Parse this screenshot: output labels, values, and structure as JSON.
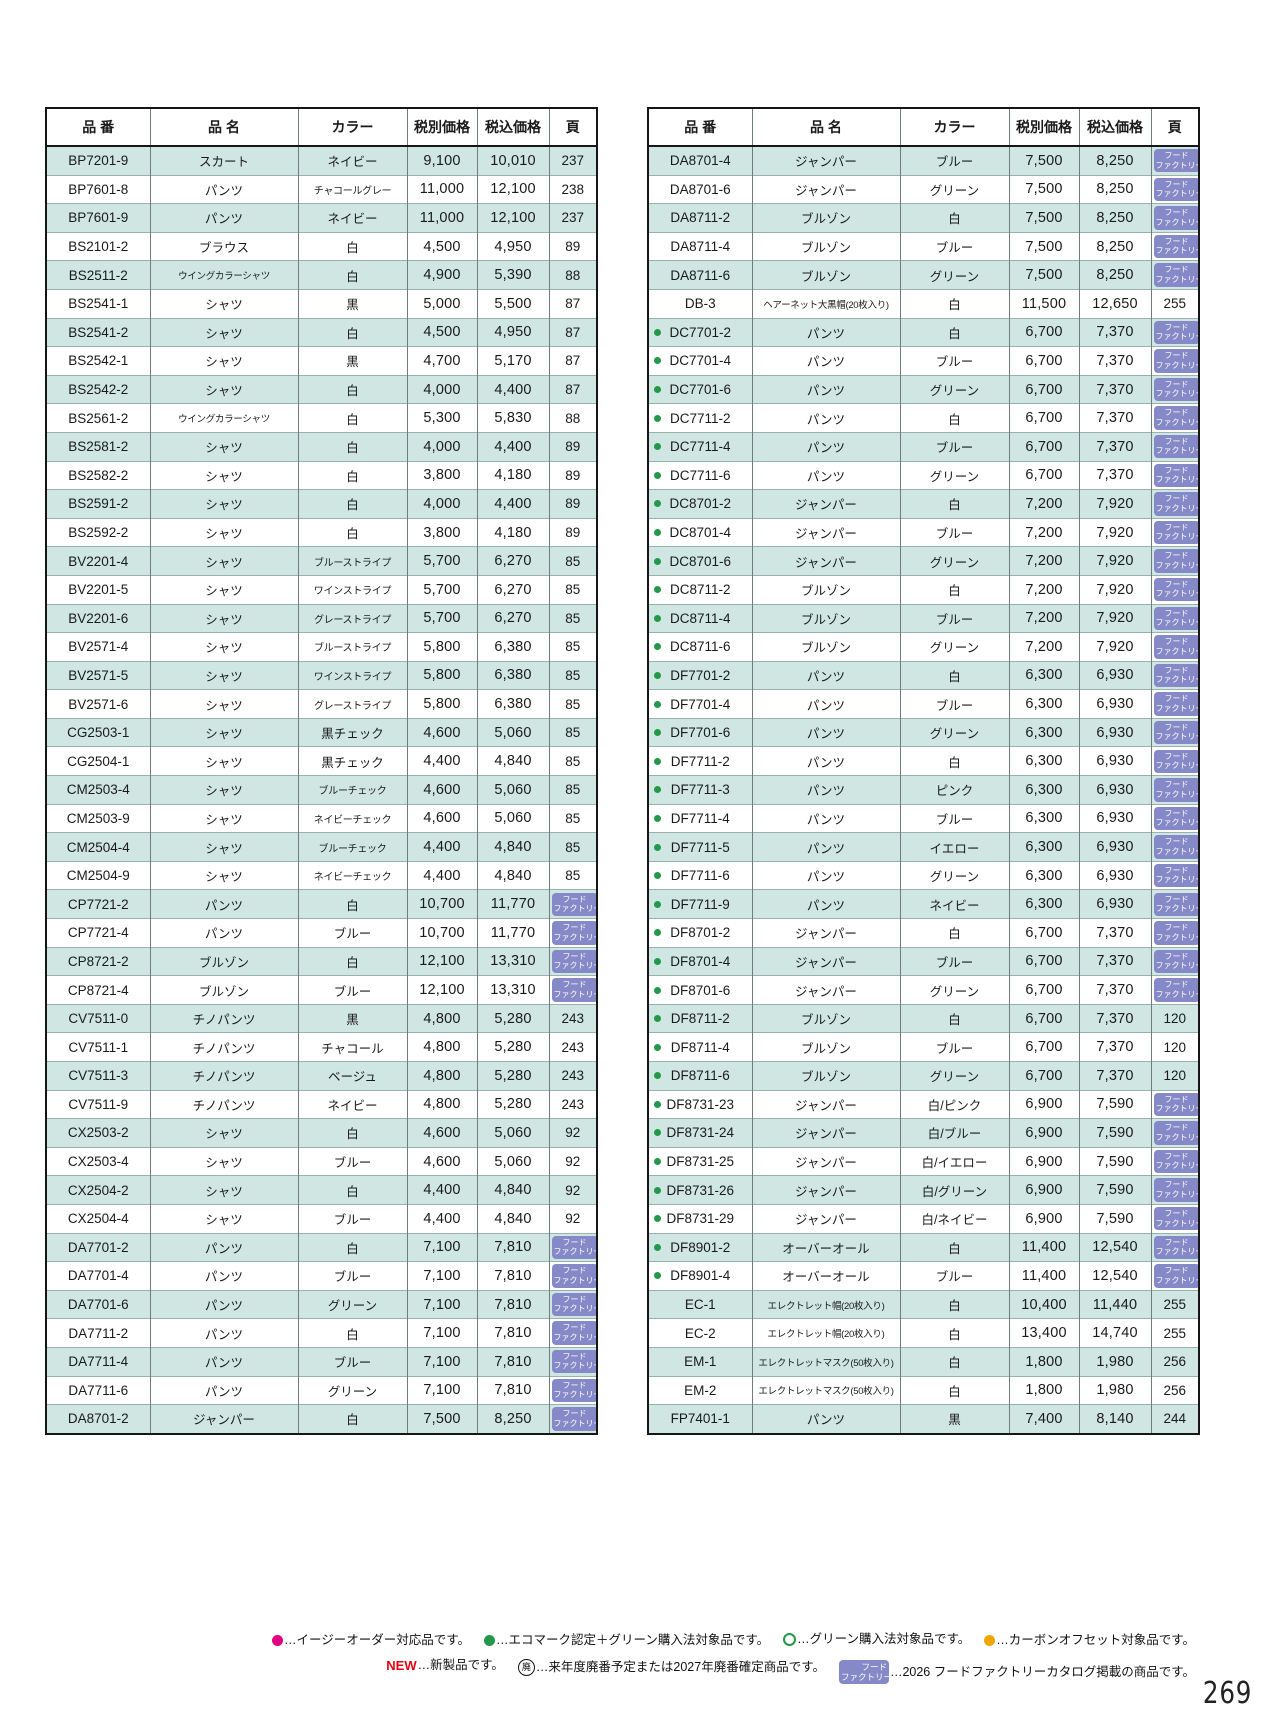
{
  "page": {
    "number": "269"
  },
  "colors": {
    "row_tint": "#cfe6e3",
    "badge_bg": "#8689c7",
    "bullet_green": "#23984a",
    "legend_magenta": "#e0007f",
    "legend_green": "#23984a",
    "legend_orange": "#f0a500",
    "new_red": "#e60012"
  },
  "columns": [
    "品 番",
    "品 名",
    "カラー",
    "税別価格",
    "税込価格",
    "頁"
  ],
  "badge": {
    "line1": "フード",
    "line2": "ファクトリー"
  },
  "left_table": {
    "rows": [
      {
        "code": "BP7201-9",
        "name": "スカート",
        "color": "ネイビー",
        "price_ex": "9,100",
        "price_in": "10,010",
        "page": "237",
        "bullet": false
      },
      {
        "code": "BP7601-8",
        "name": "パンツ",
        "color": "チャコールグレー",
        "price_ex": "11,000",
        "price_in": "12,100",
        "page": "238",
        "bullet": false
      },
      {
        "code": "BP7601-9",
        "name": "パンツ",
        "color": "ネイビー",
        "price_ex": "11,000",
        "price_in": "12,100",
        "page": "237",
        "bullet": false
      },
      {
        "code": "BS2101-2",
        "name": "ブラウス",
        "color": "白",
        "price_ex": "4,500",
        "price_in": "4,950",
        "page": "89",
        "bullet": false
      },
      {
        "code": "BS2511-2",
        "name": "ウイングカラーシャツ",
        "color": "白",
        "price_ex": "4,900",
        "price_in": "5,390",
        "page": "88",
        "bullet": false
      },
      {
        "code": "BS2541-1",
        "name": "シャツ",
        "color": "黒",
        "price_ex": "5,000",
        "price_in": "5,500",
        "page": "87",
        "bullet": false
      },
      {
        "code": "BS2541-2",
        "name": "シャツ",
        "color": "白",
        "price_ex": "4,500",
        "price_in": "4,950",
        "page": "87",
        "bullet": false
      },
      {
        "code": "BS2542-1",
        "name": "シャツ",
        "color": "黒",
        "price_ex": "4,700",
        "price_in": "5,170",
        "page": "87",
        "bullet": false
      },
      {
        "code": "BS2542-2",
        "name": "シャツ",
        "color": "白",
        "price_ex": "4,000",
        "price_in": "4,400",
        "page": "87",
        "bullet": false
      },
      {
        "code": "BS2561-2",
        "name": "ウイングカラーシャツ",
        "color": "白",
        "price_ex": "5,300",
        "price_in": "5,830",
        "page": "88",
        "bullet": false
      },
      {
        "code": "BS2581-2",
        "name": "シャツ",
        "color": "白",
        "price_ex": "4,000",
        "price_in": "4,400",
        "page": "89",
        "bullet": false
      },
      {
        "code": "BS2582-2",
        "name": "シャツ",
        "color": "白",
        "price_ex": "3,800",
        "price_in": "4,180",
        "page": "89",
        "bullet": false
      },
      {
        "code": "BS2591-2",
        "name": "シャツ",
        "color": "白",
        "price_ex": "4,000",
        "price_in": "4,400",
        "page": "89",
        "bullet": false
      },
      {
        "code": "BS2592-2",
        "name": "シャツ",
        "color": "白",
        "price_ex": "3,800",
        "price_in": "4,180",
        "page": "89",
        "bullet": false
      },
      {
        "code": "BV2201-4",
        "name": "シャツ",
        "color": "ブルーストライプ",
        "price_ex": "5,700",
        "price_in": "6,270",
        "page": "85",
        "bullet": false
      },
      {
        "code": "BV2201-5",
        "name": "シャツ",
        "color": "ワインストライプ",
        "price_ex": "5,700",
        "price_in": "6,270",
        "page": "85",
        "bullet": false
      },
      {
        "code": "BV2201-6",
        "name": "シャツ",
        "color": "グレーストライプ",
        "price_ex": "5,700",
        "price_in": "6,270",
        "page": "85",
        "bullet": false
      },
      {
        "code": "BV2571-4",
        "name": "シャツ",
        "color": "ブルーストライプ",
        "price_ex": "5,800",
        "price_in": "6,380",
        "page": "85",
        "bullet": false
      },
      {
        "code": "BV2571-5",
        "name": "シャツ",
        "color": "ワインストライプ",
        "price_ex": "5,800",
        "price_in": "6,380",
        "page": "85",
        "bullet": false
      },
      {
        "code": "BV2571-6",
        "name": "シャツ",
        "color": "グレーストライプ",
        "price_ex": "5,800",
        "price_in": "6,380",
        "page": "85",
        "bullet": false
      },
      {
        "code": "CG2503-1",
        "name": "シャツ",
        "color": "黒チェック",
        "price_ex": "4,600",
        "price_in": "5,060",
        "page": "85",
        "bullet": false
      },
      {
        "code": "CG2504-1",
        "name": "シャツ",
        "color": "黒チェック",
        "price_ex": "4,400",
        "price_in": "4,840",
        "page": "85",
        "bullet": false
      },
      {
        "code": "CM2503-4",
        "name": "シャツ",
        "color": "ブルーチェック",
        "price_ex": "4,600",
        "price_in": "5,060",
        "page": "85",
        "bullet": false
      },
      {
        "code": "CM2503-9",
        "name": "シャツ",
        "color": "ネイビーチェック",
        "price_ex": "4,600",
        "price_in": "5,060",
        "page": "85",
        "bullet": false
      },
      {
        "code": "CM2504-4",
        "name": "シャツ",
        "color": "ブルーチェック",
        "price_ex": "4,400",
        "price_in": "4,840",
        "page": "85",
        "bullet": false
      },
      {
        "code": "CM2504-9",
        "name": "シャツ",
        "color": "ネイビーチェック",
        "price_ex": "4,400",
        "price_in": "4,840",
        "page": "85",
        "bullet": false
      },
      {
        "code": "CP7721-2",
        "name": "パンツ",
        "color": "白",
        "price_ex": "10,700",
        "price_in": "11,770",
        "page": "badge",
        "bullet": false
      },
      {
        "code": "CP7721-4",
        "name": "パンツ",
        "color": "ブルー",
        "price_ex": "10,700",
        "price_in": "11,770",
        "page": "badge",
        "bullet": false
      },
      {
        "code": "CP8721-2",
        "name": "ブルゾン",
        "color": "白",
        "price_ex": "12,100",
        "price_in": "13,310",
        "page": "badge",
        "bullet": false
      },
      {
        "code": "CP8721-4",
        "name": "ブルゾン",
        "color": "ブルー",
        "price_ex": "12,100",
        "price_in": "13,310",
        "page": "badge",
        "bullet": false
      },
      {
        "code": "CV7511-0",
        "name": "チノパンツ",
        "color": "黒",
        "price_ex": "4,800",
        "price_in": "5,280",
        "page": "243",
        "bullet": false
      },
      {
        "code": "CV7511-1",
        "name": "チノパンツ",
        "color": "チャコール",
        "price_ex": "4,800",
        "price_in": "5,280",
        "page": "243",
        "bullet": false
      },
      {
        "code": "CV7511-3",
        "name": "チノパンツ",
        "color": "ベージュ",
        "price_ex": "4,800",
        "price_in": "5,280",
        "page": "243",
        "bullet": false
      },
      {
        "code": "CV7511-9",
        "name": "チノパンツ",
        "color": "ネイビー",
        "price_ex": "4,800",
        "price_in": "5,280",
        "page": "243",
        "bullet": false
      },
      {
        "code": "CX2503-2",
        "name": "シャツ",
        "color": "白",
        "price_ex": "4,600",
        "price_in": "5,060",
        "page": "92",
        "bullet": false
      },
      {
        "code": "CX2503-4",
        "name": "シャツ",
        "color": "ブルー",
        "price_ex": "4,600",
        "price_in": "5,060",
        "page": "92",
        "bullet": false
      },
      {
        "code": "CX2504-2",
        "name": "シャツ",
        "color": "白",
        "price_ex": "4,400",
        "price_in": "4,840",
        "page": "92",
        "bullet": false
      },
      {
        "code": "CX2504-4",
        "name": "シャツ",
        "color": "ブルー",
        "price_ex": "4,400",
        "price_in": "4,840",
        "page": "92",
        "bullet": false
      },
      {
        "code": "DA7701-2",
        "name": "パンツ",
        "color": "白",
        "price_ex": "7,100",
        "price_in": "7,810",
        "page": "badge",
        "bullet": false
      },
      {
        "code": "DA7701-4",
        "name": "パンツ",
        "color": "ブルー",
        "price_ex": "7,100",
        "price_in": "7,810",
        "page": "badge",
        "bullet": false
      },
      {
        "code": "DA7701-6",
        "name": "パンツ",
        "color": "グリーン",
        "price_ex": "7,100",
        "price_in": "7,810",
        "page": "badge",
        "bullet": false
      },
      {
        "code": "DA7711-2",
        "name": "パンツ",
        "color": "白",
        "price_ex": "7,100",
        "price_in": "7,810",
        "page": "badge",
        "bullet": false
      },
      {
        "code": "DA7711-4",
        "name": "パンツ",
        "color": "ブルー",
        "price_ex": "7,100",
        "price_in": "7,810",
        "page": "badge",
        "bullet": false
      },
      {
        "code": "DA7711-6",
        "name": "パンツ",
        "color": "グリーン",
        "price_ex": "7,100",
        "price_in": "7,810",
        "page": "badge",
        "bullet": false
      },
      {
        "code": "DA8701-2",
        "name": "ジャンパー",
        "color": "白",
        "price_ex": "7,500",
        "price_in": "8,250",
        "page": "badge",
        "bullet": false
      }
    ]
  },
  "right_table": {
    "rows": [
      {
        "code": "DA8701-4",
        "name": "ジャンパー",
        "color": "ブルー",
        "price_ex": "7,500",
        "price_in": "8,250",
        "page": "badge",
        "bullet": false
      },
      {
        "code": "DA8701-6",
        "name": "ジャンパー",
        "color": "グリーン",
        "price_ex": "7,500",
        "price_in": "8,250",
        "page": "badge",
        "bullet": false
      },
      {
        "code": "DA8711-2",
        "name": "ブルゾン",
        "color": "白",
        "price_ex": "7,500",
        "price_in": "8,250",
        "page": "badge",
        "bullet": false
      },
      {
        "code": "DA8711-4",
        "name": "ブルゾン",
        "color": "ブルー",
        "price_ex": "7,500",
        "price_in": "8,250",
        "page": "badge",
        "bullet": false
      },
      {
        "code": "DA8711-6",
        "name": "ブルゾン",
        "color": "グリーン",
        "price_ex": "7,500",
        "price_in": "8,250",
        "page": "badge",
        "bullet": false
      },
      {
        "code": "DB-3",
        "name": "ヘアーネット大黒帽(20枚入り)",
        "color": "白",
        "price_ex": "11,500",
        "price_in": "12,650",
        "page": "255",
        "bullet": false
      },
      {
        "code": "DC7701-2",
        "name": "パンツ",
        "color": "白",
        "price_ex": "6,700",
        "price_in": "7,370",
        "page": "badge",
        "bullet": true
      },
      {
        "code": "DC7701-4",
        "name": "パンツ",
        "color": "ブルー",
        "price_ex": "6,700",
        "price_in": "7,370",
        "page": "badge",
        "bullet": true
      },
      {
        "code": "DC7701-6",
        "name": "パンツ",
        "color": "グリーン",
        "price_ex": "6,700",
        "price_in": "7,370",
        "page": "badge",
        "bullet": true
      },
      {
        "code": "DC7711-2",
        "name": "パンツ",
        "color": "白",
        "price_ex": "6,700",
        "price_in": "7,370",
        "page": "badge",
        "bullet": true
      },
      {
        "code": "DC7711-4",
        "name": "パンツ",
        "color": "ブルー",
        "price_ex": "6,700",
        "price_in": "7,370",
        "page": "badge",
        "bullet": true
      },
      {
        "code": "DC7711-6",
        "name": "パンツ",
        "color": "グリーン",
        "price_ex": "6,700",
        "price_in": "7,370",
        "page": "badge",
        "bullet": true
      },
      {
        "code": "DC8701-2",
        "name": "ジャンパー",
        "color": "白",
        "price_ex": "7,200",
        "price_in": "7,920",
        "page": "badge",
        "bullet": true
      },
      {
        "code": "DC8701-4",
        "name": "ジャンパー",
        "color": "ブルー",
        "price_ex": "7,200",
        "price_in": "7,920",
        "page": "badge",
        "bullet": true
      },
      {
        "code": "DC8701-6",
        "name": "ジャンパー",
        "color": "グリーン",
        "price_ex": "7,200",
        "price_in": "7,920",
        "page": "badge",
        "bullet": true
      },
      {
        "code": "DC8711-2",
        "name": "ブルゾン",
        "color": "白",
        "price_ex": "7,200",
        "price_in": "7,920",
        "page": "badge",
        "bullet": true
      },
      {
        "code": "DC8711-4",
        "name": "ブルゾン",
        "color": "ブルー",
        "price_ex": "7,200",
        "price_in": "7,920",
        "page": "badge",
        "bullet": true
      },
      {
        "code": "DC8711-6",
        "name": "ブルゾン",
        "color": "グリーン",
        "price_ex": "7,200",
        "price_in": "7,920",
        "page": "badge",
        "bullet": true
      },
      {
        "code": "DF7701-2",
        "name": "パンツ",
        "color": "白",
        "price_ex": "6,300",
        "price_in": "6,930",
        "page": "badge",
        "bullet": true
      },
      {
        "code": "DF7701-4",
        "name": "パンツ",
        "color": "ブルー",
        "price_ex": "6,300",
        "price_in": "6,930",
        "page": "badge",
        "bullet": true
      },
      {
        "code": "DF7701-6",
        "name": "パンツ",
        "color": "グリーン",
        "price_ex": "6,300",
        "price_in": "6,930",
        "page": "badge",
        "bullet": true
      },
      {
        "code": "DF7711-2",
        "name": "パンツ",
        "color": "白",
        "price_ex": "6,300",
        "price_in": "6,930",
        "page": "badge",
        "bullet": true
      },
      {
        "code": "DF7711-3",
        "name": "パンツ",
        "color": "ピンク",
        "price_ex": "6,300",
        "price_in": "6,930",
        "page": "badge",
        "bullet": true
      },
      {
        "code": "DF7711-4",
        "name": "パンツ",
        "color": "ブルー",
        "price_ex": "6,300",
        "price_in": "6,930",
        "page": "badge",
        "bullet": true
      },
      {
        "code": "DF7711-5",
        "name": "パンツ",
        "color": "イエロー",
        "price_ex": "6,300",
        "price_in": "6,930",
        "page": "badge",
        "bullet": true
      },
      {
        "code": "DF7711-6",
        "name": "パンツ",
        "color": "グリーン",
        "price_ex": "6,300",
        "price_in": "6,930",
        "page": "badge",
        "bullet": true
      },
      {
        "code": "DF7711-9",
        "name": "パンツ",
        "color": "ネイビー",
        "price_ex": "6,300",
        "price_in": "6,930",
        "page": "badge",
        "bullet": true
      },
      {
        "code": "DF8701-2",
        "name": "ジャンパー",
        "color": "白",
        "price_ex": "6,700",
        "price_in": "7,370",
        "page": "badge",
        "bullet": true
      },
      {
        "code": "DF8701-4",
        "name": "ジャンパー",
        "color": "ブルー",
        "price_ex": "6,700",
        "price_in": "7,370",
        "page": "badge",
        "bullet": true
      },
      {
        "code": "DF8701-6",
        "name": "ジャンパー",
        "color": "グリーン",
        "price_ex": "6,700",
        "price_in": "7,370",
        "page": "badge",
        "bullet": true
      },
      {
        "code": "DF8711-2",
        "name": "ブルゾン",
        "color": "白",
        "price_ex": "6,700",
        "price_in": "7,370",
        "page": "120",
        "bullet": true
      },
      {
        "code": "DF8711-4",
        "name": "ブルゾン",
        "color": "ブルー",
        "price_ex": "6,700",
        "price_in": "7,370",
        "page": "120",
        "bullet": true
      },
      {
        "code": "DF8711-6",
        "name": "ブルゾン",
        "color": "グリーン",
        "price_ex": "6,700",
        "price_in": "7,370",
        "page": "120",
        "bullet": true
      },
      {
        "code": "DF8731-23",
        "name": "ジャンパー",
        "color": "白/ピンク",
        "price_ex": "6,900",
        "price_in": "7,590",
        "page": "badge",
        "bullet": true
      },
      {
        "code": "DF8731-24",
        "name": "ジャンパー",
        "color": "白/ブルー",
        "price_ex": "6,900",
        "price_in": "7,590",
        "page": "badge",
        "bullet": true
      },
      {
        "code": "DF8731-25",
        "name": "ジャンパー",
        "color": "白/イエロー",
        "price_ex": "6,900",
        "price_in": "7,590",
        "page": "badge",
        "bullet": true
      },
      {
        "code": "DF8731-26",
        "name": "ジャンパー",
        "color": "白/グリーン",
        "price_ex": "6,900",
        "price_in": "7,590",
        "page": "badge",
        "bullet": true
      },
      {
        "code": "DF8731-29",
        "name": "ジャンパー",
        "color": "白/ネイビー",
        "price_ex": "6,900",
        "price_in": "7,590",
        "page": "badge",
        "bullet": true
      },
      {
        "code": "DF8901-2",
        "name": "オーバーオール",
        "color": "白",
        "price_ex": "11,400",
        "price_in": "12,540",
        "page": "badge",
        "bullet": true
      },
      {
        "code": "DF8901-4",
        "name": "オーバーオール",
        "color": "ブルー",
        "price_ex": "11,400",
        "price_in": "12,540",
        "page": "badge",
        "bullet": true
      },
      {
        "code": "EC-1",
        "name": "エレクトレット帽(20枚入り)",
        "color": "白",
        "price_ex": "10,400",
        "price_in": "11,440",
        "page": "255",
        "bullet": false
      },
      {
        "code": "EC-2",
        "name": "エレクトレット帽(20枚入り)",
        "color": "白",
        "price_ex": "13,400",
        "price_in": "14,740",
        "page": "255",
        "bullet": false
      },
      {
        "code": "EM-1",
        "name": "エレクトレットマスク(50枚入り)",
        "color": "白",
        "price_ex": "1,800",
        "price_in": "1,980",
        "page": "256",
        "bullet": false
      },
      {
        "code": "EM-2",
        "name": "エレクトレットマスク(50枚入り)",
        "color": "白",
        "price_ex": "1,800",
        "price_in": "1,980",
        "page": "256",
        "bullet": false
      },
      {
        "code": "FP7401-1",
        "name": "パンツ",
        "color": "黒",
        "price_ex": "7,400",
        "price_in": "8,140",
        "page": "244",
        "bullet": false
      }
    ]
  },
  "legend": {
    "line1": [
      {
        "type": "dot",
        "color": "#e0007f",
        "text": "…イージーオーダー対応品です。"
      },
      {
        "type": "dot",
        "color": "#23984a",
        "text": "…エコマーク認定＋グリーン購入法対象品です。"
      },
      {
        "type": "ring",
        "color": "#23984a",
        "text": "…グリーン購入法対象品です。"
      },
      {
        "type": "dot",
        "color": "#f0a500",
        "text": "…カーボンオフセット対象品です。"
      }
    ],
    "line2": [
      {
        "type": "new",
        "label": "NEW",
        "text": "…新製品です。"
      },
      {
        "type": "maru",
        "label": "廃",
        "text": "…来年度廃番予定または2027年廃番確定商品です。"
      },
      {
        "type": "badge",
        "label": "",
        "text": "…2026 フードファクトリーカタログ掲載の商品です。"
      }
    ]
  }
}
